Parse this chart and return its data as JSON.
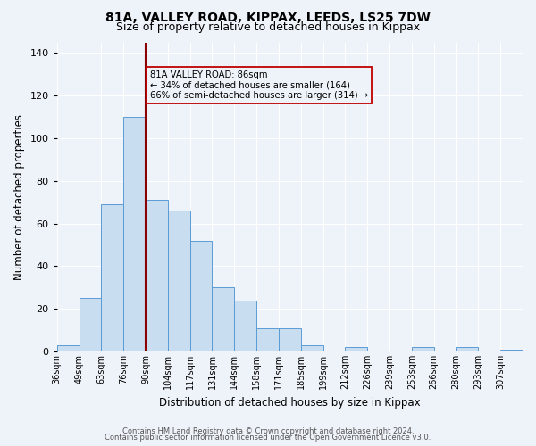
{
  "title1": "81A, VALLEY ROAD, KIPPAX, LEEDS, LS25 7DW",
  "title2": "Size of property relative to detached houses in Kippax",
  "xlabel": "Distribution of detached houses by size in Kippax",
  "ylabel": "Number of detached properties",
  "bin_labels": [
    "36sqm",
    "49sqm",
    "63sqm",
    "76sqm",
    "90sqm",
    "104sqm",
    "117sqm",
    "131sqm",
    "144sqm",
    "158sqm",
    "171sqm",
    "185sqm",
    "199sqm",
    "212sqm",
    "226sqm",
    "239sqm",
    "253sqm",
    "266sqm",
    "280sqm",
    "293sqm",
    "307sqm"
  ],
  "bar_heights": [
    3,
    25,
    69,
    110,
    71,
    66,
    52,
    30,
    24,
    11,
    11,
    3,
    0,
    2,
    0,
    0,
    2,
    0,
    2,
    0,
    1
  ],
  "bar_color": "#c8ddf0",
  "bar_edge_color": "#5b9bd5",
  "property_bin_index": 4,
  "vline_color": "#8b0000",
  "annotation_text": "81A VALLEY ROAD: 86sqm\n← 34% of detached houses are smaller (164)\n66% of semi-detached houses are larger (314) →",
  "annotation_box_edge_color": "#c00000",
  "ylim": [
    0,
    145
  ],
  "yticks": [
    0,
    20,
    40,
    60,
    80,
    100,
    120,
    140
  ],
  "footer1": "Contains HM Land Registry data © Crown copyright and database right 2024.",
  "footer2": "Contains public sector information licensed under the Open Government Licence v3.0.",
  "bg_color": "#eef2f9",
  "grid_color": "#ffffff",
  "title_fontsize": 10,
  "subtitle_fontsize": 9
}
